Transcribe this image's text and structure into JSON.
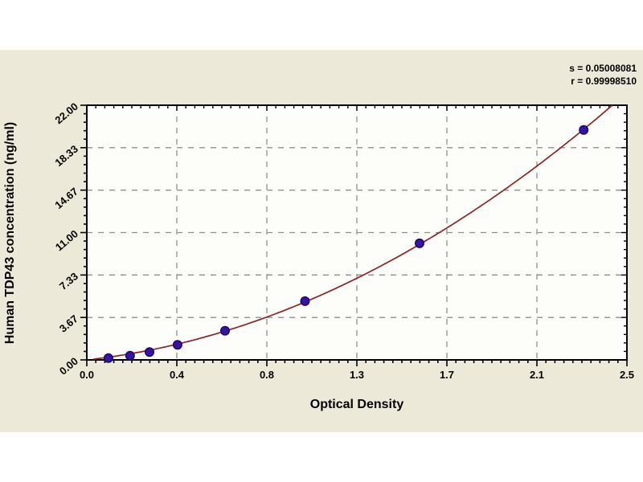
{
  "page": {
    "background": "#ffffff",
    "panel_background": "#ece9d8"
  },
  "stats": {
    "line1": "s = 0.05008081",
    "line2": "r = 0.99998510"
  },
  "chart_data": {
    "type": "scatter",
    "title": "",
    "xlabel": "Optical Density",
    "ylabel": "Human TDP43 concentration (ng/ml)",
    "xlim": [
      0,
      2.5
    ],
    "ylim": [
      0,
      22
    ],
    "x_ticks": [
      "0.0",
      "0.4",
      "0.8",
      "1.3",
      "1.7",
      "2.1",
      "2.5"
    ],
    "y_ticks": [
      "0.00",
      "3.67",
      "7.33",
      "11.00",
      "14.67",
      "18.33",
      "22.00"
    ],
    "grid": true,
    "legend": null,
    "curve": "quadratic-fit-through-origin",
    "points": [
      {
        "x": 0.1,
        "y": 0.15
      },
      {
        "x": 0.2,
        "y": 0.37
      },
      {
        "x": 0.29,
        "y": 0.67
      },
      {
        "x": 0.42,
        "y": 1.3
      },
      {
        "x": 0.64,
        "y": 2.52
      },
      {
        "x": 1.01,
        "y": 5.07
      },
      {
        "x": 1.54,
        "y": 10.07
      },
      {
        "x": 2.3,
        "y": 19.87
      }
    ],
    "colors": {
      "curve": "#8b2424",
      "marker": "#3812a4",
      "marker_edge": "#1a0660",
      "grid": "#8f8f8f",
      "axis": "#000000",
      "plot_background": "#fdfdfa"
    }
  }
}
